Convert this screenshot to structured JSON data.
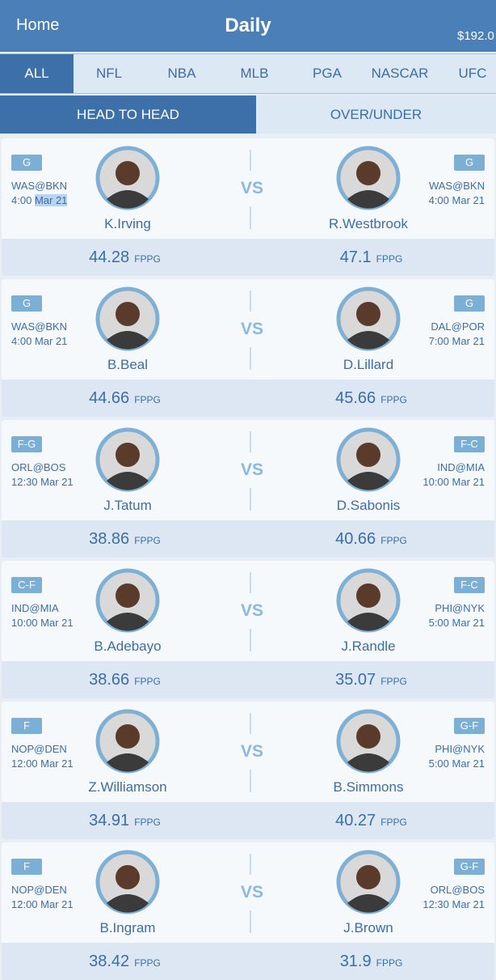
{
  "header": {
    "home": "Home",
    "title": "Daily",
    "balance": "$192.0"
  },
  "sport_tabs": [
    "ALL",
    "NFL",
    "NBA",
    "MLB",
    "PGA",
    "NASCAR",
    "UFC"
  ],
  "mode_tabs": [
    "HEAD TO HEAD",
    "OVER/UNDER"
  ],
  "vs_label": "VS",
  "unit": "FPPG",
  "matchups": [
    {
      "left": {
        "pos": "G",
        "game": "WAS@BKN",
        "time": "4:00",
        "date": "Mar 21",
        "name": "K.Irving",
        "fppg": 44.28
      },
      "right": {
        "pos": "G",
        "game": "WAS@BKN",
        "time": "4:00",
        "date": "Mar 21",
        "name": "R.Westbrook",
        "fppg": 47.1
      }
    },
    {
      "left": {
        "pos": "G",
        "game": "WAS@BKN",
        "time": "4:00",
        "date": "Mar 21",
        "name": "B.Beal",
        "fppg": 44.66
      },
      "right": {
        "pos": "G",
        "game": "DAL@POR",
        "time": "7:00",
        "date": "Mar 21",
        "name": "D.Lillard",
        "fppg": 45.66
      }
    },
    {
      "left": {
        "pos": "F-G",
        "game": "ORL@BOS",
        "time": "12:30",
        "date": "Mar 21",
        "name": "J.Tatum",
        "fppg": 38.86
      },
      "right": {
        "pos": "F-C",
        "game": "IND@MIA",
        "time": "10:00",
        "date": "Mar 21",
        "name": "D.Sabonis",
        "fppg": 40.66
      }
    },
    {
      "left": {
        "pos": "C-F",
        "game": "IND@MIA",
        "time": "10:00",
        "date": "Mar 21",
        "name": "B.Adebayo",
        "fppg": 38.66
      },
      "right": {
        "pos": "F-C",
        "game": "PHI@NYK",
        "time": "5:00",
        "date": "Mar 21",
        "name": "J.Randle",
        "fppg": 35.07
      }
    },
    {
      "left": {
        "pos": "F",
        "game": "NOP@DEN",
        "time": "12:00",
        "date": "Mar 21",
        "name": "Z.Williamson",
        "fppg": 34.91
      },
      "right": {
        "pos": "G-F",
        "game": "PHI@NYK",
        "time": "5:00",
        "date": "Mar 21",
        "name": "B.Simmons",
        "fppg": 40.27
      }
    },
    {
      "left": {
        "pos": "F",
        "game": "NOP@DEN",
        "time": "12:00",
        "date": "Mar 21",
        "name": "B.Ingram",
        "fppg": 38.42
      },
      "right": {
        "pos": "G-F",
        "game": "ORL@BOS",
        "time": "12:30",
        "date": "Mar 21",
        "name": "J.Brown",
        "fppg": 31.9
      }
    }
  ]
}
